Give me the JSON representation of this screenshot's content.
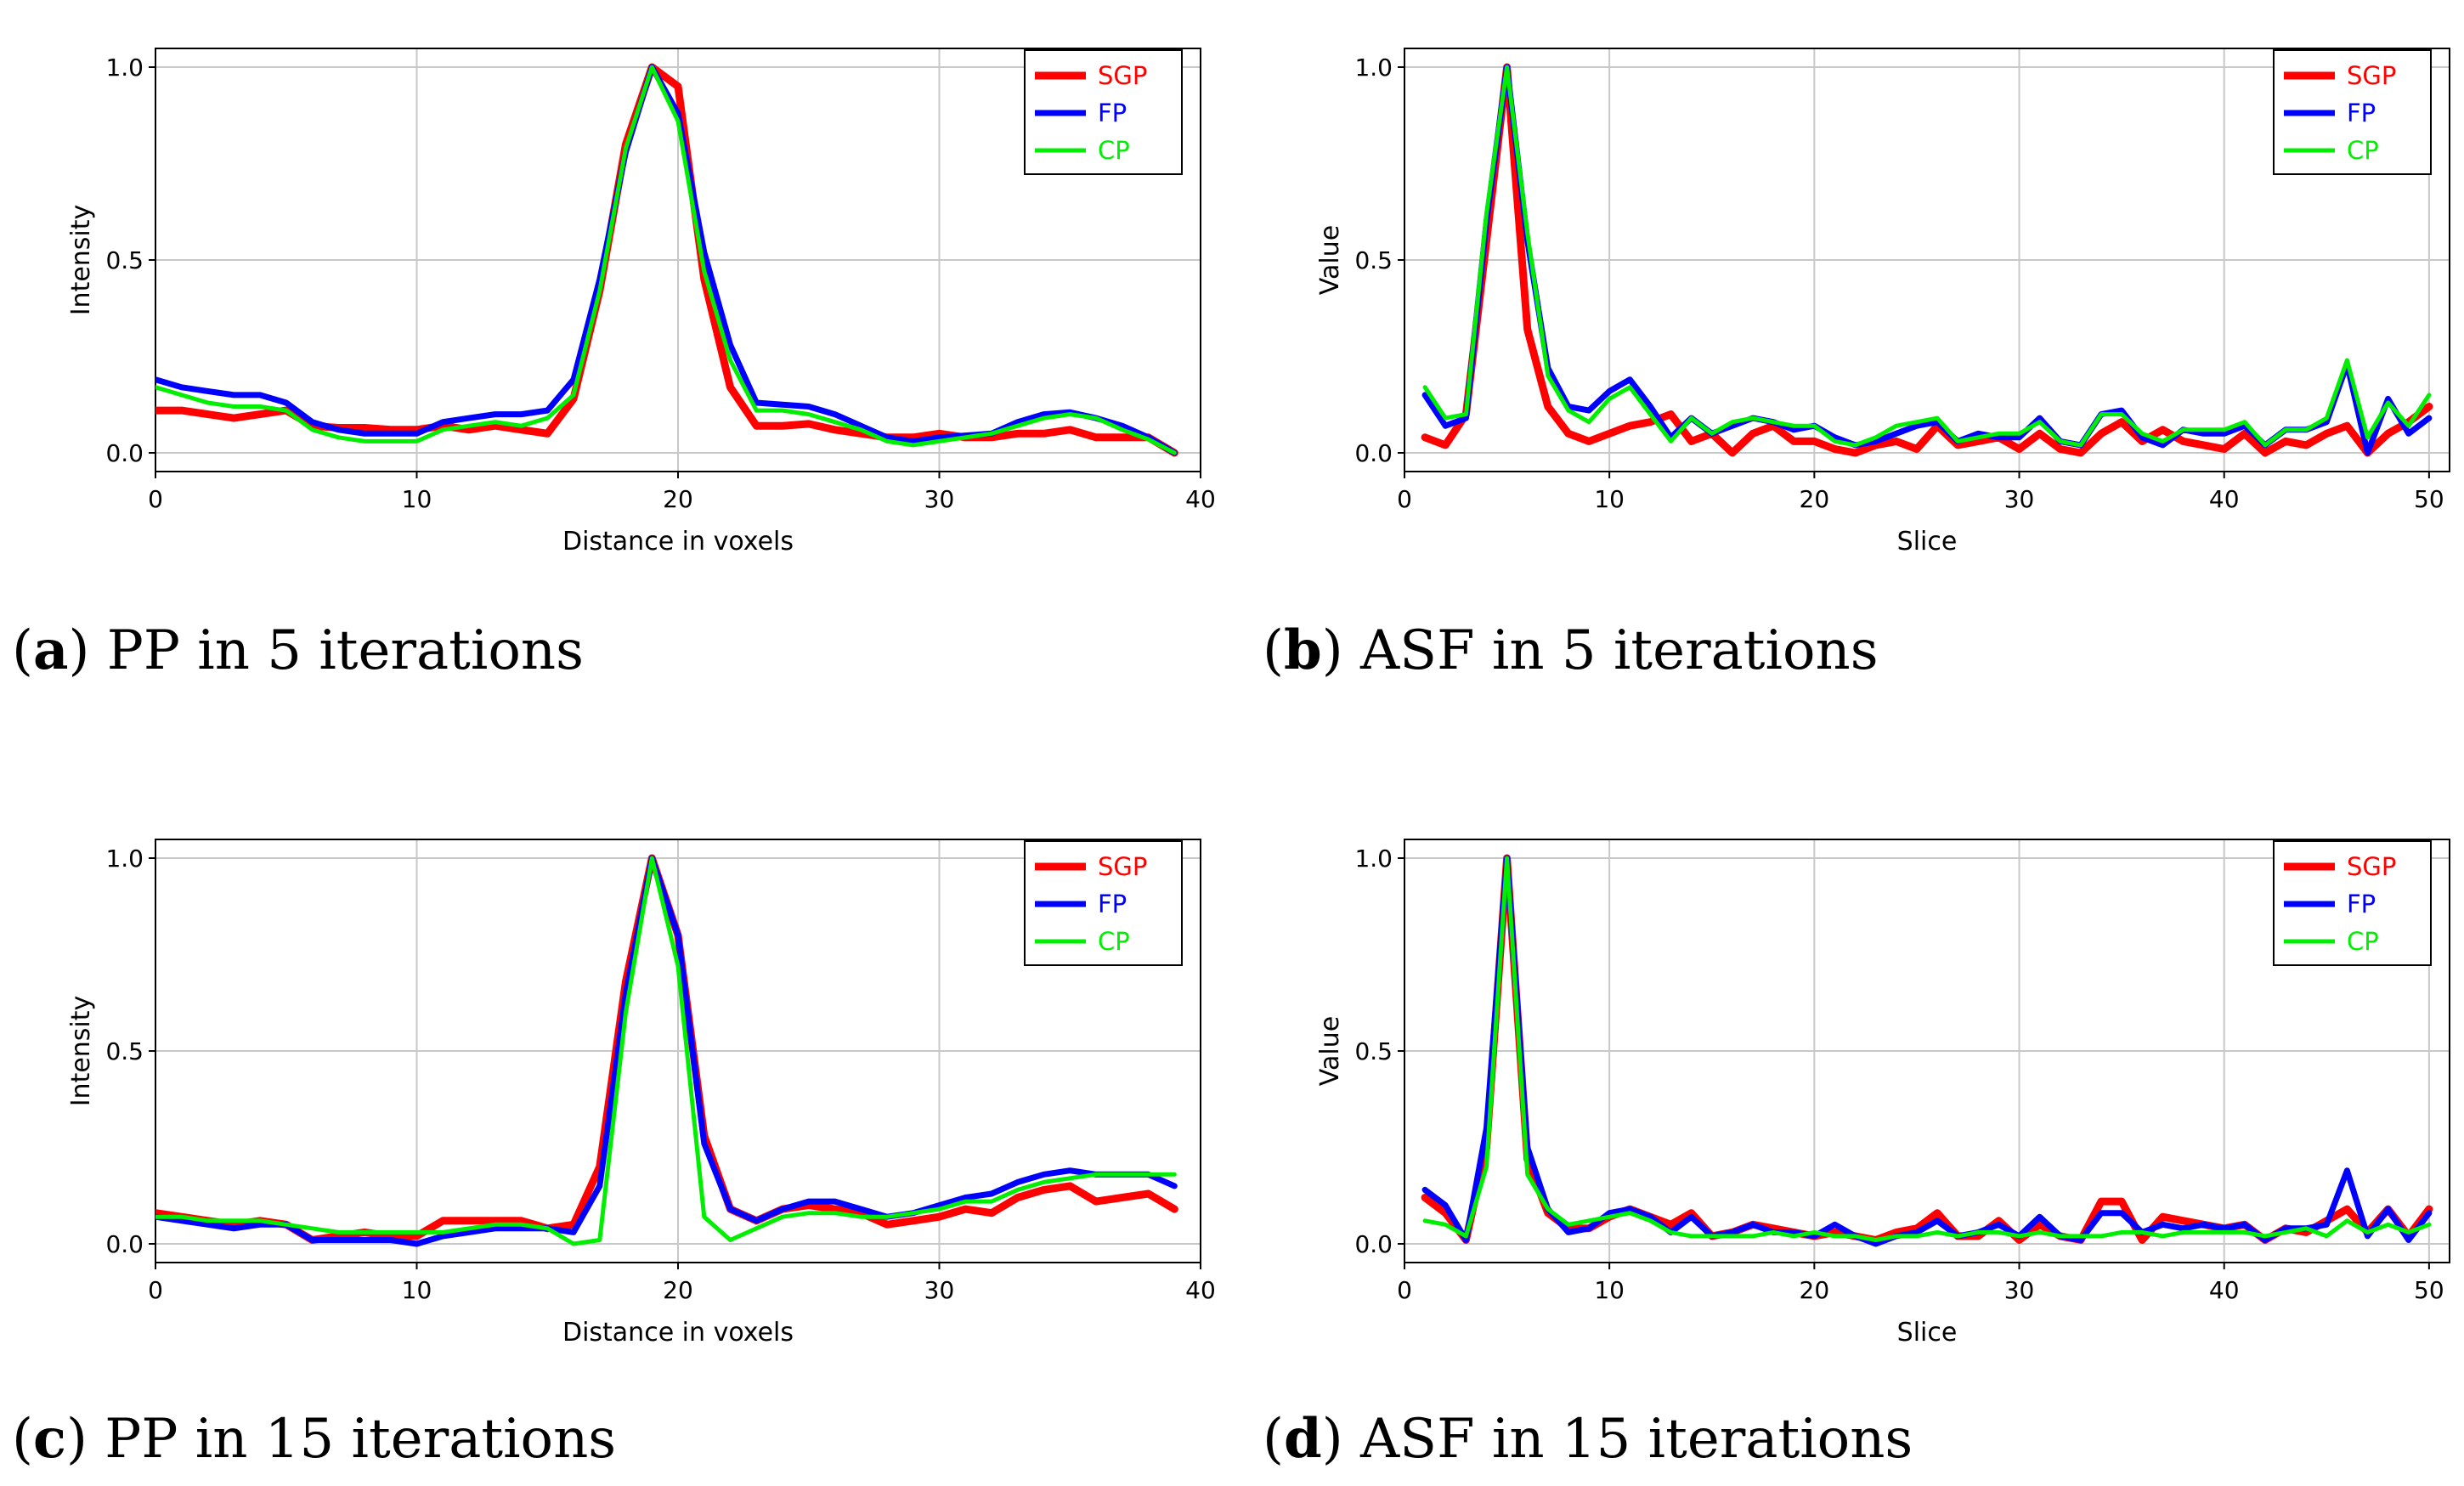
{
  "colors": {
    "SGP": "#ff0000",
    "FP": "#0000ff",
    "CP": "#00ee00"
  },
  "captions": [
    {
      "letter": "a",
      "text": "PP in 5 iterations"
    },
    {
      "letter": "b",
      "text": "ASF in 5 iterations"
    },
    {
      "letter": "c",
      "text": "PP in 15 iterations"
    },
    {
      "letter": "d",
      "text": "ASF in 15 iterations"
    }
  ],
  "chart_data": [
    {
      "id": "a",
      "type": "line",
      "title": "",
      "xlabel": "Distance in voxels",
      "ylabel": "Intensity",
      "xlim": [
        0,
        40
      ],
      "ylim": [
        0,
        1
      ],
      "xticks": [
        "0",
        "10",
        "20",
        "30",
        "40"
      ],
      "yticks": [
        "0.0",
        "0.5",
        "1.0"
      ],
      "grid": true,
      "legend": "top-right",
      "x": [
        0,
        1,
        2,
        3,
        4,
        5,
        6,
        7,
        8,
        9,
        10,
        11,
        12,
        13,
        14,
        15,
        16,
        17,
        18,
        19,
        20,
        21,
        22,
        23,
        24,
        25,
        26,
        27,
        28,
        29,
        30,
        31,
        32,
        33,
        34,
        35,
        36,
        37,
        38,
        39
      ],
      "series": [
        {
          "name": "SGP",
          "values": [
            0.11,
            0.11,
            0.1,
            0.09,
            0.1,
            0.11,
            0.07,
            0.065,
            0.065,
            0.06,
            0.06,
            0.07,
            0.06,
            0.07,
            0.06,
            0.05,
            0.14,
            0.42,
            0.8,
            1.0,
            0.95,
            0.45,
            0.17,
            0.07,
            0.07,
            0.075,
            0.06,
            0.05,
            0.04,
            0.04,
            0.05,
            0.04,
            0.04,
            0.05,
            0.05,
            0.06,
            0.04,
            0.04,
            0.04,
            0.0
          ]
        },
        {
          "name": "FP",
          "values": [
            0.19,
            0.17,
            0.16,
            0.15,
            0.15,
            0.13,
            0.08,
            0.06,
            0.05,
            0.05,
            0.05,
            0.08,
            0.09,
            0.1,
            0.1,
            0.11,
            0.19,
            0.45,
            0.78,
            1.0,
            0.88,
            0.52,
            0.28,
            0.13,
            0.125,
            0.12,
            0.1,
            0.07,
            0.04,
            0.03,
            0.04,
            0.045,
            0.05,
            0.08,
            0.1,
            0.105,
            0.09,
            0.07,
            0.04,
            0.0
          ]
        },
        {
          "name": "CP",
          "values": [
            0.17,
            0.15,
            0.13,
            0.12,
            0.12,
            0.11,
            0.06,
            0.04,
            0.03,
            0.03,
            0.03,
            0.06,
            0.07,
            0.08,
            0.07,
            0.09,
            0.15,
            0.42,
            0.79,
            1.0,
            0.86,
            0.47,
            0.24,
            0.11,
            0.11,
            0.1,
            0.08,
            0.06,
            0.03,
            0.02,
            0.03,
            0.04,
            0.05,
            0.07,
            0.09,
            0.1,
            0.09,
            0.06,
            0.035,
            0.0
          ]
        }
      ]
    },
    {
      "id": "b",
      "type": "line",
      "title": "",
      "xlabel": "Slice",
      "ylabel": "Value",
      "xlim": [
        0,
        51
      ],
      "ylim": [
        0,
        1
      ],
      "xticks": [
        "0",
        "10",
        "20",
        "30",
        "40",
        "50"
      ],
      "yticks": [
        "0.0",
        "0.5",
        "1.0"
      ],
      "grid": true,
      "legend": "top-right",
      "x": [
        1,
        2,
        3,
        4,
        5,
        6,
        7,
        8,
        9,
        10,
        11,
        12,
        13,
        14,
        15,
        16,
        17,
        18,
        19,
        20,
        21,
        22,
        23,
        24,
        25,
        26,
        27,
        28,
        29,
        30,
        31,
        32,
        33,
        34,
        35,
        36,
        37,
        38,
        39,
        40,
        41,
        42,
        43,
        44,
        45,
        46,
        47,
        48,
        49,
        50
      ],
      "series": [
        {
          "name": "SGP",
          "values": [
            0.04,
            0.02,
            0.1,
            0.55,
            1.0,
            0.32,
            0.12,
            0.05,
            0.03,
            0.05,
            0.07,
            0.08,
            0.1,
            0.03,
            0.05,
            0.0,
            0.05,
            0.07,
            0.03,
            0.03,
            0.01,
            0.0,
            0.02,
            0.03,
            0.01,
            0.07,
            0.02,
            0.03,
            0.04,
            0.01,
            0.05,
            0.01,
            0.0,
            0.05,
            0.08,
            0.03,
            0.06,
            0.03,
            0.02,
            0.01,
            0.05,
            0.0,
            0.03,
            0.02,
            0.05,
            0.07,
            0.0,
            0.05,
            0.08,
            0.12
          ]
        },
        {
          "name": "FP",
          "values": [
            0.15,
            0.07,
            0.09,
            0.6,
            1.0,
            0.55,
            0.22,
            0.12,
            0.11,
            0.16,
            0.19,
            0.12,
            0.04,
            0.09,
            0.05,
            0.07,
            0.09,
            0.08,
            0.06,
            0.07,
            0.04,
            0.02,
            0.03,
            0.05,
            0.07,
            0.08,
            0.03,
            0.05,
            0.04,
            0.04,
            0.09,
            0.03,
            0.02,
            0.1,
            0.11,
            0.04,
            0.02,
            0.06,
            0.05,
            0.05,
            0.07,
            0.02,
            0.06,
            0.06,
            0.08,
            0.23,
            0.0,
            0.14,
            0.05,
            0.09
          ]
        },
        {
          "name": "CP",
          "values": [
            0.17,
            0.09,
            0.1,
            0.62,
            1.0,
            0.57,
            0.2,
            0.11,
            0.08,
            0.14,
            0.17,
            0.1,
            0.03,
            0.09,
            0.05,
            0.08,
            0.09,
            0.08,
            0.07,
            0.07,
            0.03,
            0.02,
            0.04,
            0.07,
            0.08,
            0.09,
            0.03,
            0.04,
            0.05,
            0.05,
            0.08,
            0.03,
            0.02,
            0.1,
            0.1,
            0.05,
            0.03,
            0.06,
            0.06,
            0.06,
            0.08,
            0.02,
            0.06,
            0.06,
            0.09,
            0.24,
            0.04,
            0.13,
            0.07,
            0.15
          ]
        }
      ]
    },
    {
      "id": "c",
      "type": "line",
      "title": "",
      "xlabel": "Distance in voxels",
      "ylabel": "Intensity",
      "xlim": [
        0,
        40
      ],
      "ylim": [
        0,
        1
      ],
      "xticks": [
        "0",
        "10",
        "20",
        "30",
        "40"
      ],
      "yticks": [
        "0.0",
        "0.5",
        "1.0"
      ],
      "grid": true,
      "legend": "top-right",
      "x": [
        0,
        1,
        2,
        3,
        4,
        5,
        6,
        7,
        8,
        9,
        10,
        11,
        12,
        13,
        14,
        15,
        16,
        17,
        18,
        19,
        20,
        21,
        22,
        23,
        24,
        25,
        26,
        27,
        28,
        29,
        30,
        31,
        32,
        33,
        34,
        35,
        36,
        37,
        38,
        39
      ],
      "series": [
        {
          "name": "SGP",
          "values": [
            0.08,
            0.07,
            0.06,
            0.05,
            0.06,
            0.05,
            0.01,
            0.02,
            0.03,
            0.02,
            0.02,
            0.06,
            0.06,
            0.06,
            0.06,
            0.04,
            0.05,
            0.2,
            0.68,
            1.0,
            0.8,
            0.28,
            0.09,
            0.06,
            0.09,
            0.1,
            0.09,
            0.08,
            0.05,
            0.06,
            0.07,
            0.09,
            0.08,
            0.12,
            0.14,
            0.15,
            0.11,
            0.12,
            0.13,
            0.09
          ]
        },
        {
          "name": "FP",
          "values": [
            0.07,
            0.06,
            0.05,
            0.04,
            0.05,
            0.05,
            0.01,
            0.01,
            0.01,
            0.01,
            0.0,
            0.02,
            0.03,
            0.04,
            0.04,
            0.04,
            0.03,
            0.15,
            0.65,
            1.0,
            0.8,
            0.26,
            0.09,
            0.06,
            0.09,
            0.11,
            0.11,
            0.09,
            0.07,
            0.08,
            0.1,
            0.12,
            0.13,
            0.16,
            0.18,
            0.19,
            0.18,
            0.18,
            0.18,
            0.15
          ]
        },
        {
          "name": "CP",
          "values": [
            0.07,
            0.07,
            0.06,
            0.06,
            0.06,
            0.05,
            0.04,
            0.03,
            0.03,
            0.03,
            0.03,
            0.03,
            0.04,
            0.05,
            0.05,
            0.04,
            0.0,
            0.01,
            0.6,
            1.0,
            0.72,
            0.07,
            0.01,
            0.04,
            0.07,
            0.08,
            0.08,
            0.07,
            0.07,
            0.08,
            0.09,
            0.11,
            0.11,
            0.14,
            0.16,
            0.17,
            0.18,
            0.18,
            0.18,
            0.18
          ]
        }
      ]
    },
    {
      "id": "d",
      "type": "line",
      "title": "",
      "xlabel": "Slice",
      "ylabel": "Value",
      "xlim": [
        0,
        51
      ],
      "ylim": [
        0,
        1
      ],
      "xticks": [
        "0",
        "10",
        "20",
        "30",
        "40",
        "50"
      ],
      "yticks": [
        "0.0",
        "0.5",
        "1.0"
      ],
      "grid": true,
      "legend": "top-right",
      "x": [
        1,
        2,
        3,
        4,
        5,
        6,
        7,
        8,
        9,
        10,
        11,
        12,
        13,
        14,
        15,
        16,
        17,
        18,
        19,
        20,
        21,
        22,
        23,
        24,
        25,
        26,
        27,
        28,
        29,
        30,
        31,
        32,
        33,
        34,
        35,
        36,
        37,
        38,
        39,
        40,
        41,
        42,
        43,
        44,
        45,
        46,
        47,
        48,
        49,
        50
      ],
      "series": [
        {
          "name": "SGP",
          "values": [
            0.12,
            0.08,
            0.01,
            0.25,
            1.0,
            0.22,
            0.08,
            0.04,
            0.04,
            0.07,
            0.09,
            0.07,
            0.05,
            0.08,
            0.02,
            0.03,
            0.05,
            0.04,
            0.03,
            0.02,
            0.03,
            0.02,
            0.01,
            0.03,
            0.04,
            0.08,
            0.02,
            0.02,
            0.06,
            0.01,
            0.05,
            0.02,
            0.01,
            0.11,
            0.11,
            0.01,
            0.07,
            0.06,
            0.05,
            0.04,
            0.05,
            0.01,
            0.04,
            0.03,
            0.06,
            0.09,
            0.03,
            0.09,
            0.02,
            0.09
          ]
        },
        {
          "name": "FP",
          "values": [
            0.14,
            0.1,
            0.01,
            0.3,
            1.0,
            0.25,
            0.09,
            0.03,
            0.04,
            0.08,
            0.09,
            0.07,
            0.03,
            0.07,
            0.02,
            0.03,
            0.05,
            0.03,
            0.03,
            0.02,
            0.05,
            0.02,
            0.0,
            0.02,
            0.03,
            0.06,
            0.02,
            0.03,
            0.05,
            0.02,
            0.07,
            0.02,
            0.01,
            0.08,
            0.08,
            0.03,
            0.05,
            0.04,
            0.05,
            0.04,
            0.05,
            0.01,
            0.04,
            0.04,
            0.05,
            0.19,
            0.02,
            0.09,
            0.01,
            0.08
          ]
        },
        {
          "name": "CP",
          "values": [
            0.06,
            0.05,
            0.02,
            0.2,
            1.0,
            0.18,
            0.09,
            0.05,
            0.06,
            0.07,
            0.08,
            0.06,
            0.03,
            0.02,
            0.02,
            0.02,
            0.02,
            0.03,
            0.02,
            0.03,
            0.02,
            0.02,
            0.01,
            0.02,
            0.02,
            0.03,
            0.02,
            0.03,
            0.03,
            0.02,
            0.03,
            0.02,
            0.02,
            0.02,
            0.03,
            0.03,
            0.02,
            0.03,
            0.03,
            0.03,
            0.03,
            0.02,
            0.03,
            0.04,
            0.02,
            0.06,
            0.03,
            0.05,
            0.03,
            0.05
          ]
        }
      ]
    }
  ]
}
